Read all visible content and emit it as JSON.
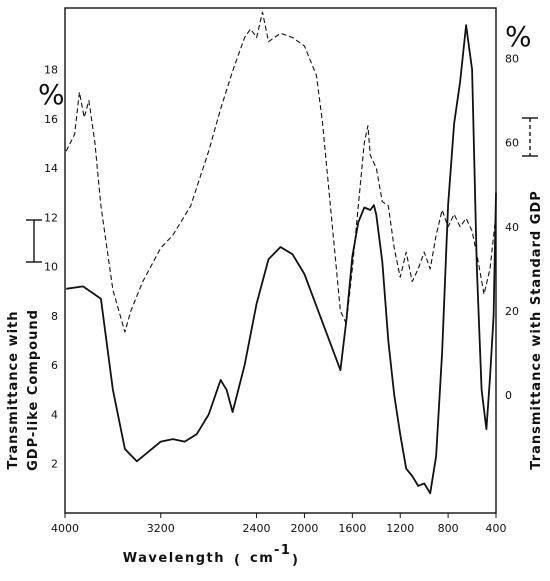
{
  "chart_data": {
    "type": "line",
    "xlabel": "Wavelength",
    "xlabel_unit_open": "(",
    "xlabel_unit": "cm",
    "xlabel_unit_exp": "-1",
    "xlabel_unit_close": ")",
    "left_axis_symbol": "%",
    "right_axis_symbol": "%",
    "left_ylabel_line1": "Transmittance with",
    "left_ylabel_line2": "GDP-like   Compound",
    "right_ylabel": "Transmittance with Standard  GDP",
    "xlim": [
      4000,
      400
    ],
    "x_ticks": [
      {
        "value": 4000,
        "label": "4000"
      },
      {
        "value": 3200,
        "label": "3200"
      },
      {
        "value": 2400,
        "label": "2400"
      },
      {
        "value": 2000,
        "label": "2000"
      },
      {
        "value": 1600,
        "label": "1600"
      },
      {
        "value": 1200,
        "label": "1200"
      },
      {
        "value": 800,
        "label": "800"
      },
      {
        "value": 400,
        "label": "400"
      }
    ],
    "left_ylim": [
      0,
      20.5
    ],
    "left_ticks": [
      {
        "value": 2,
        "label": "2"
      },
      {
        "value": 4,
        "label": "4"
      },
      {
        "value": 6,
        "label": "6"
      },
      {
        "value": 8,
        "label": "8"
      },
      {
        "value": 10,
        "label": "10"
      },
      {
        "value": 12,
        "label": "12"
      },
      {
        "value": 14,
        "label": "14"
      },
      {
        "value": 16,
        "label": "16"
      },
      {
        "value": 18,
        "label": "18"
      }
    ],
    "right_ylim": [
      -28,
      92
    ],
    "right_ticks": [
      {
        "value": 0,
        "label": "0"
      },
      {
        "value": 20,
        "label": "20"
      },
      {
        "value": 40,
        "label": "40"
      },
      {
        "value": 60,
        "label": "60"
      },
      {
        "value": 80,
        "label": "80"
      }
    ],
    "grid": false,
    "series": [
      {
        "style": "solid",
        "axis": "left",
        "points": [
          [
            3990,
            9.1
          ],
          [
            3850,
            9.2
          ],
          [
            3700,
            8.7
          ],
          [
            3600,
            5.0
          ],
          [
            3500,
            2.6
          ],
          [
            3400,
            2.1
          ],
          [
            3300,
            2.5
          ],
          [
            3200,
            2.9
          ],
          [
            3100,
            3.0
          ],
          [
            3000,
            2.9
          ],
          [
            2900,
            3.2
          ],
          [
            2800,
            4.0
          ],
          [
            2700,
            5.4
          ],
          [
            2650,
            5.0
          ],
          [
            2600,
            4.1
          ],
          [
            2500,
            6.0
          ],
          [
            2400,
            8.5
          ],
          [
            2300,
            10.3
          ],
          [
            2200,
            10.8
          ],
          [
            2100,
            10.5
          ],
          [
            2000,
            9.7
          ],
          [
            1900,
            8.4
          ],
          [
            1800,
            7.1
          ],
          [
            1700,
            5.8
          ],
          [
            1650,
            7.8
          ],
          [
            1600,
            10.4
          ],
          [
            1550,
            11.8
          ],
          [
            1500,
            12.4
          ],
          [
            1450,
            12.3
          ],
          [
            1420,
            12.5
          ],
          [
            1400,
            12.1
          ],
          [
            1350,
            10.2
          ],
          [
            1300,
            7.0
          ],
          [
            1250,
            4.8
          ],
          [
            1200,
            3.2
          ],
          [
            1150,
            1.8
          ],
          [
            1100,
            1.5
          ],
          [
            1050,
            1.1
          ],
          [
            1000,
            1.2
          ],
          [
            950,
            0.8
          ],
          [
            900,
            2.3
          ],
          [
            850,
            6.5
          ],
          [
            800,
            12.5
          ],
          [
            750,
            15.8
          ],
          [
            700,
            17.5
          ],
          [
            650,
            19.8
          ],
          [
            600,
            18.0
          ],
          [
            560,
            10.0
          ],
          [
            520,
            5.0
          ],
          [
            480,
            3.4
          ],
          [
            450,
            5.5
          ],
          [
            420,
            8.0
          ],
          [
            400,
            13.0
          ]
        ]
      },
      {
        "style": "dashed",
        "axis": "right",
        "points": [
          [
            3990,
            58
          ],
          [
            3920,
            62
          ],
          [
            3880,
            72
          ],
          [
            3840,
            66
          ],
          [
            3800,
            70
          ],
          [
            3750,
            60
          ],
          [
            3700,
            45
          ],
          [
            3600,
            25
          ],
          [
            3500,
            15
          ],
          [
            3450,
            20
          ],
          [
            3350,
            27
          ],
          [
            3200,
            35
          ],
          [
            3100,
            38
          ],
          [
            2950,
            45
          ],
          [
            2800,
            58
          ],
          [
            2700,
            68
          ],
          [
            2600,
            77
          ],
          [
            2500,
            85
          ],
          [
            2450,
            87
          ],
          [
            2400,
            85
          ],
          [
            2350,
            91
          ],
          [
            2300,
            84
          ],
          [
            2200,
            86
          ],
          [
            2100,
            85
          ],
          [
            2000,
            83
          ],
          [
            1900,
            76
          ],
          [
            1850,
            65
          ],
          [
            1800,
            50
          ],
          [
            1750,
            35
          ],
          [
            1700,
            20
          ],
          [
            1650,
            17
          ],
          [
            1600,
            30
          ],
          [
            1550,
            45
          ],
          [
            1500,
            60
          ],
          [
            1470,
            64
          ],
          [
            1450,
            57
          ],
          [
            1400,
            54
          ],
          [
            1350,
            46
          ],
          [
            1300,
            45
          ],
          [
            1250,
            35
          ],
          [
            1200,
            28
          ],
          [
            1150,
            34
          ],
          [
            1100,
            27
          ],
          [
            1050,
            30
          ],
          [
            1000,
            34
          ],
          [
            950,
            30
          ],
          [
            900,
            38
          ],
          [
            850,
            44
          ],
          [
            800,
            40
          ],
          [
            750,
            43
          ],
          [
            700,
            40
          ],
          [
            650,
            42
          ],
          [
            600,
            39
          ],
          [
            550,
            32
          ],
          [
            500,
            24
          ],
          [
            450,
            30
          ],
          [
            400,
            43
          ]
        ]
      }
    ]
  }
}
